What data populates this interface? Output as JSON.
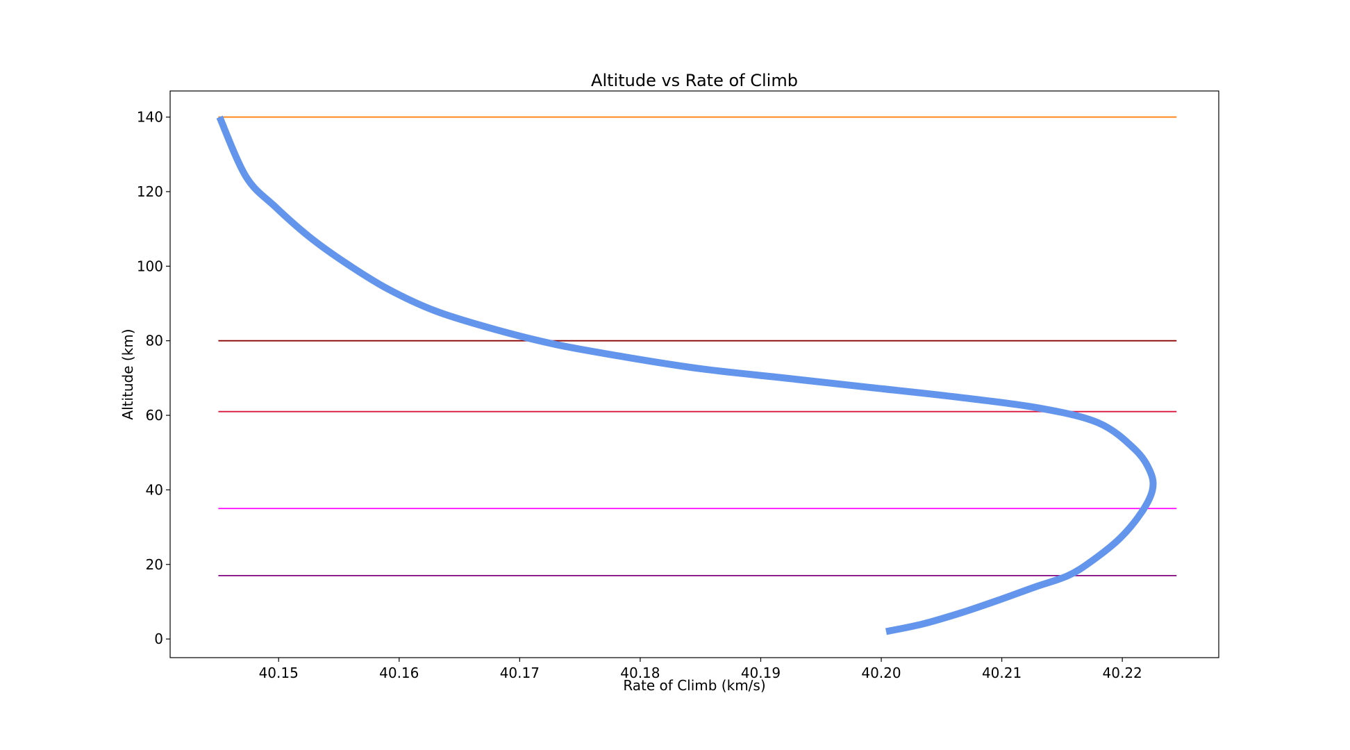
{
  "chart_data": {
    "type": "line",
    "title": "Altitude vs Rate of Climb",
    "xlabel": "Rate of Climb (km/s)",
    "ylabel": "Altitude (km)",
    "xlim": [
      40.141,
      40.228
    ],
    "ylim": [
      -5,
      147
    ],
    "x_ticks": [
      "40.15",
      "40.16",
      "40.17",
      "40.18",
      "40.19",
      "40.20",
      "40.21",
      "40.22"
    ],
    "y_ticks": [
      "0",
      "20",
      "40",
      "60",
      "80",
      "100",
      "120",
      "140"
    ],
    "grid": false,
    "legend": "none",
    "series": [
      {
        "color": "#6495ed",
        "x": [
          40.2004,
          40.2034,
          40.2066,
          40.2098,
          40.2128,
          40.2155,
          40.2175,
          40.2198,
          40.2216,
          40.2225,
          40.2223,
          40.221,
          40.218,
          40.213,
          40.206,
          40.199,
          40.192,
          40.185,
          40.179,
          40.173,
          40.168,
          40.163,
          40.159,
          40.1555,
          40.1525,
          40.1497,
          40.1473,
          40.1451
        ],
        "y": [
          2,
          4,
          7,
          10.5,
          14,
          17,
          21,
          27,
          34,
          40,
          45,
          51,
          58,
          62,
          65,
          67.5,
          70,
          72.5,
          75.5,
          79,
          83,
          88,
          94,
          101,
          108,
          116,
          124,
          140
        ]
      }
    ],
    "hlines": [
      {
        "y": 140,
        "x_range": [
          40.145,
          40.2245
        ],
        "color": "#ff7f0e"
      },
      {
        "y": 80,
        "x_range": [
          40.145,
          40.2245
        ],
        "color": "#8b0000"
      },
      {
        "y": 61,
        "x_range": [
          40.145,
          40.2245
        ],
        "color": "#dc143c"
      },
      {
        "y": 35,
        "x_range": [
          40.145,
          40.2245
        ],
        "color": "#ff00ff"
      },
      {
        "y": 17,
        "x_range": [
          40.145,
          40.2245
        ],
        "color": "#800080"
      }
    ]
  }
}
